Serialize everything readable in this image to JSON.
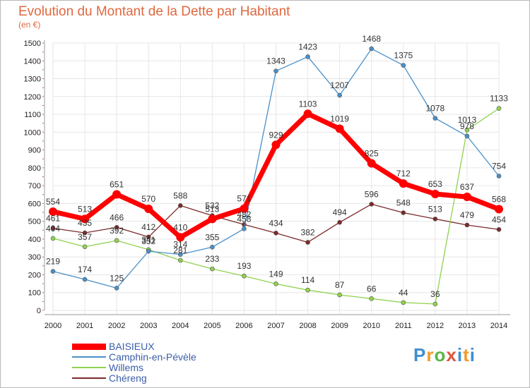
{
  "title": "Evolution du Montant de la Dette par Habitant",
  "unit_label": "(en €)",
  "logo": {
    "text": "Proxiti",
    "colors": [
      "#3e8fd0",
      "#f29a2e",
      "#5bb548",
      "#e3543b",
      "#3e8fd0",
      "#f29a2e"
    ]
  },
  "chart_data": {
    "type": "line",
    "title": "Evolution du Montant de la Dette par Habitant",
    "ylabel": "(en €)",
    "xlabel": "",
    "x": [
      "2000",
      "2001",
      "2002",
      "2003",
      "2004",
      "2005",
      "2006",
      "2007",
      "2008",
      "2009",
      "2010",
      "2011",
      "2012",
      "2013",
      "2014"
    ],
    "ylim": [
      0,
      1500
    ],
    "yticks": [
      0,
      100,
      200,
      300,
      400,
      500,
      600,
      700,
      800,
      900,
      1000,
      1100,
      1200,
      1300,
      1400,
      1500
    ],
    "grid": true,
    "legend_position": "bottom-left",
    "series": [
      {
        "name": "BAISIEUX",
        "color": "#ff0000",
        "values": [
          554,
          513,
          651,
          570,
          410,
          513,
          571,
          929,
          1103,
          1019,
          825,
          712,
          653,
          637,
          568
        ]
      },
      {
        "name": "Camphin-en-Pévèle",
        "color": "#4a90c8",
        "values": [
          219,
          174,
          125,
          332,
          314,
          355,
          458,
          1343,
          1423,
          1207,
          1468,
          1375,
          1078,
          978,
          754
        ]
      },
      {
        "name": "Willems",
        "color": "#8fd14f",
        "values": [
          404,
          357,
          392,
          341,
          281,
          233,
          193,
          149,
          114,
          87,
          66,
          44,
          36,
          1013,
          1133
        ]
      },
      {
        "name": "Chéreng",
        "color": "#7b2a2a",
        "values": [
          461,
          435,
          466,
          412,
          588,
          532,
          482,
          434,
          382,
          494,
          596,
          548,
          513,
          479,
          454
        ]
      }
    ]
  }
}
